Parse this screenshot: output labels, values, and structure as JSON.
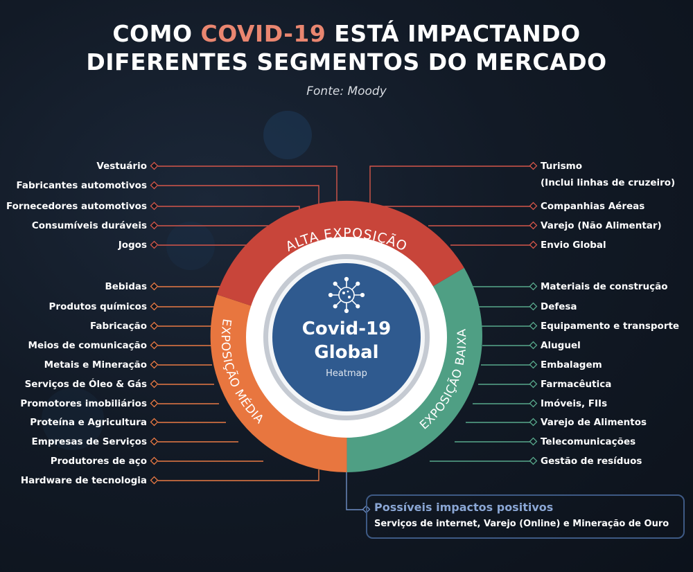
{
  "title": {
    "prefix": "COMO ",
    "highlight": "COVID-19",
    "rest": " ESTÁ IMPACTANDO",
    "line2": "DIFERENTES SEGMENTOS DO MERCADO"
  },
  "source": "Fonte: Moody",
  "hub": {
    "title_line1": "Covid-19",
    "title_line2": "Global",
    "subtitle": "Heatmap",
    "icon": "virus-icon"
  },
  "rings": {
    "high": {
      "label": "ALTA EXPOSIÇÃO",
      "color": "#c8453a"
    },
    "medium": {
      "label": "EXPOSIÇÃO MÉDIA",
      "color": "#e8763f"
    },
    "low": {
      "label": "EXPOSIÇÃO BAIXA",
      "color": "#4f9f84"
    }
  },
  "high_left": [
    "Vestuário",
    "Fabricantes automotivos",
    "Fornecedores automotivos",
    "Consumíveis duráveis",
    "Jogos"
  ],
  "high_right": [
    "Turismo",
    "(Inclui linhas de cruzeiro)",
    "Companhias Aéreas",
    "Varejo (Não Alimentar)",
    "Envio Global"
  ],
  "medium_left": [
    "Bebidas",
    "Produtos químicos",
    "Fabricação",
    "Meios de comunicação",
    "Metais e Mineração",
    "Serviços de Óleo & Gás",
    "Promotores imobiliários",
    "Proteína e Agricultura",
    "Empresas de Serviços",
    "Produtores de aço",
    "Hardware de tecnologia"
  ],
  "low_right": [
    "Materiais de construção",
    "Defesa",
    "Equipamento e transporte",
    "Aluguel",
    "Embalagem",
    "Farmacêutica",
    "Imóveis, FIIs",
    "Varejo de Alimentos",
    "Telecomunicações",
    "Gestão de resíduos"
  ],
  "positive": {
    "title": "Possíveis impactos positivos",
    "text": "Serviços de internet, Varejo (Online) e Mineração de Ouro",
    "color": "#8aa6d4"
  }
}
